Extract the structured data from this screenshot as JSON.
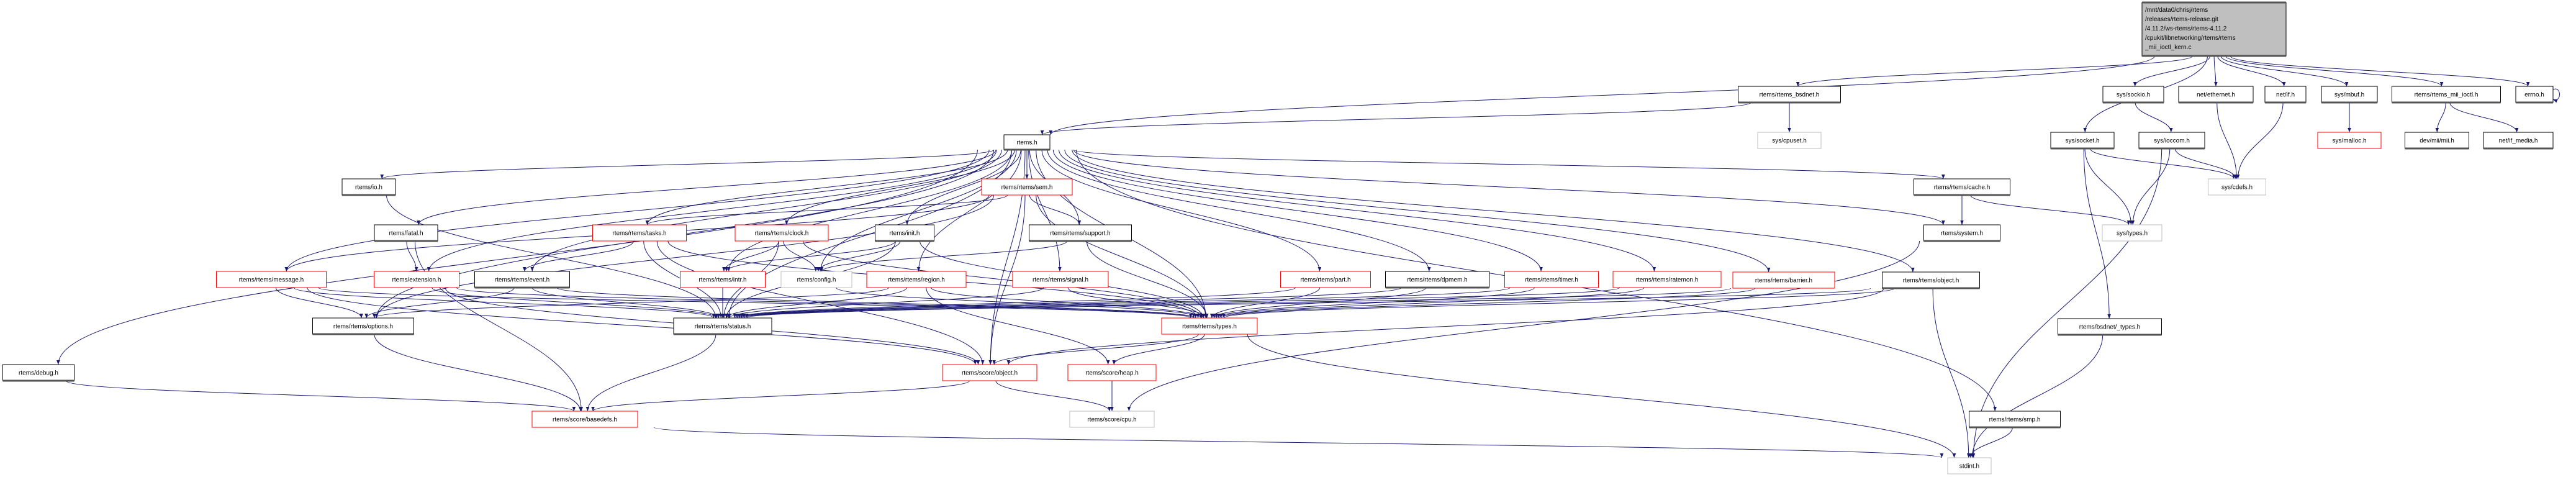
{
  "colors": {
    "edge": "#191970",
    "documented_border": "#000000",
    "documented_shadow": "#555555",
    "truncated_border": "#ff0000",
    "external_border": "#bfbfbf",
    "root_fill": "#bfbfbf"
  },
  "nodes": [
    {
      "id": "root",
      "style": "root",
      "lines": [
        "/mnt/data0/chrisj/rtems",
        "/releases/rtems-release.git",
        "/4.11.2/ws-rtems/rtems-4.11.2",
        "/cpukit/libnetworking/rtems/rtems",
        "_mii_ioctl_kern.c"
      ]
    },
    {
      "id": "rtems_h",
      "label": "rtems.h",
      "style": "documented"
    },
    {
      "id": "bsdnet",
      "label": "rtems/rtems_bsdnet.h",
      "style": "documented"
    },
    {
      "id": "cpuset",
      "label": "sys/cpuset.h",
      "style": "external"
    },
    {
      "id": "socket",
      "label": "sys/socket.h",
      "style": "documented"
    },
    {
      "id": "sockio",
      "label": "sys/sockio.h",
      "style": "documented"
    },
    {
      "id": "ioccom",
      "label": "sys/ioccom.h",
      "style": "documented"
    },
    {
      "id": "ethernet",
      "label": "net/ethernet.h",
      "style": "documented"
    },
    {
      "id": "netif",
      "label": "net/if.h",
      "style": "documented"
    },
    {
      "id": "mbuf",
      "label": "sys/mbuf.h",
      "style": "documented"
    },
    {
      "id": "malloc",
      "label": "sys/malloc.h",
      "style": "truncated"
    },
    {
      "id": "miiioctl",
      "label": "rtems/rtems_mii_ioctl.h",
      "style": "documented"
    },
    {
      "id": "mii",
      "label": "dev/mii/mii.h",
      "style": "documented"
    },
    {
      "id": "ifmedia",
      "label": "net/if_media.h",
      "style": "documented"
    },
    {
      "id": "errno",
      "label": "errno.h",
      "style": "documented"
    },
    {
      "id": "cdefs",
      "label": "sys/cdefs.h",
      "style": "external"
    },
    {
      "id": "systypes",
      "label": "sys/types.h",
      "style": "external"
    },
    {
      "id": "cache",
      "label": "rtems/rtems/cache.h",
      "style": "documented"
    },
    {
      "id": "system",
      "label": "rtems/system.h",
      "style": "documented"
    },
    {
      "id": "barrier",
      "label": "rtems/rtems/barrier.h",
      "style": "truncated"
    },
    {
      "id": "object",
      "label": "rtems/rtems/object.h",
      "style": "documented"
    },
    {
      "id": "bsdtypes",
      "label": "rtems/bsdnet/_types.h",
      "style": "documented"
    },
    {
      "id": "smp",
      "label": "rtems/rtems/smp.h",
      "style": "documented"
    },
    {
      "id": "stdint",
      "label": "stdint.h",
      "style": "external"
    },
    {
      "id": "io",
      "label": "rtems/io.h",
      "style": "documented"
    },
    {
      "id": "fatal",
      "label": "rtems/fatal.h",
      "style": "documented"
    },
    {
      "id": "tasks",
      "label": "rtems/rtems/tasks.h",
      "style": "truncated"
    },
    {
      "id": "clock",
      "label": "rtems/rtems/clock.h",
      "style": "truncated"
    },
    {
      "id": "init",
      "label": "rtems/init.h",
      "style": "documented"
    },
    {
      "id": "sem",
      "label": "rtems/rtems/sem.h",
      "style": "truncated"
    },
    {
      "id": "support",
      "label": "rtems/rtems/support.h",
      "style": "documented"
    },
    {
      "id": "message",
      "label": "rtems/rtems/message.h",
      "style": "truncated"
    },
    {
      "id": "extension",
      "label": "rtems/extension.h",
      "style": "truncated"
    },
    {
      "id": "event",
      "label": "rtems/rtems/event.h",
      "style": "documented"
    },
    {
      "id": "intr",
      "label": "rtems/rtems/intr.h",
      "style": "truncated"
    },
    {
      "id": "config",
      "label": "rtems/config.h",
      "style": "external"
    },
    {
      "id": "region",
      "label": "rtems/rtems/region.h",
      "style": "truncated"
    },
    {
      "id": "signal",
      "label": "rtems/rtems/signal.h",
      "style": "truncated"
    },
    {
      "id": "part",
      "label": "rtems/rtems/part.h",
      "style": "truncated"
    },
    {
      "id": "dpmem",
      "label": "rtems/rtems/dpmem.h",
      "style": "documented"
    },
    {
      "id": "timer",
      "label": "rtems/rtems/timer.h",
      "style": "truncated"
    },
    {
      "id": "ratemon",
      "label": "rtems/rtems/ratemon.h",
      "style": "truncated"
    },
    {
      "id": "options",
      "label": "rtems/rtems/options.h",
      "style": "documented"
    },
    {
      "id": "status",
      "label": "rtems/rtems/status.h",
      "style": "documented"
    },
    {
      "id": "types",
      "label": "rtems/rtems/types.h",
      "style": "truncated"
    },
    {
      "id": "debug",
      "label": "rtems/debug.h",
      "style": "documented"
    },
    {
      "id": "sobject",
      "label": "rtems/score/object.h",
      "style": "truncated"
    },
    {
      "id": "heap",
      "label": "rtems/score/heap.h",
      "style": "truncated"
    },
    {
      "id": "basedefs",
      "label": "rtems/score/basedefs.h",
      "style": "truncated"
    },
    {
      "id": "cpu",
      "label": "rtems/score/cpu.h",
      "style": "external"
    }
  ],
  "edges": [
    [
      "root",
      "rtems_h"
    ],
    [
      "root",
      "bsdnet"
    ],
    [
      "root",
      "socket"
    ],
    [
      "root",
      "sockio"
    ],
    [
      "root",
      "ethernet"
    ],
    [
      "root",
      "netif"
    ],
    [
      "root",
      "mbuf"
    ],
    [
      "root",
      "miiioctl"
    ],
    [
      "root",
      "errno"
    ],
    [
      "errno",
      "errno"
    ],
    [
      "bsdnet",
      "rtems_h"
    ],
    [
      "bsdnet",
      "cpuset"
    ],
    [
      "sockio",
      "ioccom"
    ],
    [
      "socket",
      "cdefs"
    ],
    [
      "socket",
      "systypes"
    ],
    [
      "socket",
      "bsdtypes"
    ],
    [
      "ioccom",
      "cdefs"
    ],
    [
      "ioccom",
      "systypes"
    ],
    [
      "ioccom",
      "stdint"
    ],
    [
      "ethernet",
      "cdefs"
    ],
    [
      "netif",
      "cdefs"
    ],
    [
      "mbuf",
      "malloc"
    ],
    [
      "miiioctl",
      "mii"
    ],
    [
      "miiioctl",
      "ifmedia"
    ],
    [
      "cache",
      "system"
    ],
    [
      "cache",
      "systypes"
    ],
    [
      "system",
      "cpu"
    ],
    [
      "object",
      "types"
    ],
    [
      "object",
      "status"
    ],
    [
      "object",
      "sobject"
    ],
    [
      "object",
      "stdint"
    ],
    [
      "bsdtypes",
      "stdint"
    ],
    [
      "smp",
      "stdint"
    ],
    [
      "types",
      "sobject"
    ],
    [
      "types",
      "heap"
    ],
    [
      "types",
      "stdint"
    ],
    [
      "sobject",
      "basedefs"
    ],
    [
      "sobject",
      "cpu"
    ],
    [
      "heap",
      "cpu"
    ],
    [
      "basedefs",
      "stdint"
    ],
    [
      "debug",
      "basedefs"
    ],
    [
      "options",
      "basedefs"
    ],
    [
      "status",
      "basedefs"
    ],
    [
      "rtems_h",
      "debug"
    ],
    [
      "rtems_h",
      "options"
    ],
    [
      "rtems_h",
      "status"
    ],
    [
      "rtems_h",
      "io"
    ],
    [
      "rtems_h",
      "fatal"
    ],
    [
      "rtems_h",
      "message"
    ],
    [
      "rtems_h",
      "extension"
    ],
    [
      "rtems_h",
      "tasks"
    ],
    [
      "rtems_h",
      "event"
    ],
    [
      "rtems_h",
      "clock"
    ],
    [
      "rtems_h",
      "intr"
    ],
    [
      "rtems_h",
      "config"
    ],
    [
      "rtems_h",
      "init"
    ],
    [
      "rtems_h",
      "sem"
    ],
    [
      "rtems_h",
      "region"
    ],
    [
      "rtems_h",
      "support"
    ],
    [
      "rtems_h",
      "signal"
    ],
    [
      "rtems_h",
      "part"
    ],
    [
      "rtems_h",
      "dpmem"
    ],
    [
      "rtems_h",
      "timer"
    ],
    [
      "rtems_h",
      "ratemon"
    ],
    [
      "rtems_h",
      "barrier"
    ],
    [
      "rtems_h",
      "object"
    ],
    [
      "rtems_h",
      "cache"
    ],
    [
      "rtems_h",
      "system"
    ],
    [
      "rtems_h",
      "smp"
    ],
    [
      "rtems_h",
      "types"
    ],
    [
      "rtems_h",
      "sobject"
    ],
    [
      "io",
      "status"
    ],
    [
      "fatal",
      "extension"
    ],
    [
      "fatal",
      "basedefs"
    ],
    [
      "tasks",
      "event"
    ],
    [
      "tasks",
      "status"
    ],
    [
      "tasks",
      "types"
    ],
    [
      "tasks",
      "sobject"
    ],
    [
      "clock",
      "config"
    ],
    [
      "clock",
      "types"
    ],
    [
      "clock",
      "status"
    ],
    [
      "clock",
      "intr"
    ],
    [
      "init",
      "config"
    ],
    [
      "init",
      "types"
    ],
    [
      "init",
      "status"
    ],
    [
      "init",
      "intr"
    ],
    [
      "sem",
      "tasks"
    ],
    [
      "sem",
      "message"
    ],
    [
      "sem",
      "support"
    ],
    [
      "sem",
      "types"
    ],
    [
      "sem",
      "sobject"
    ],
    [
      "sem",
      "options"
    ],
    [
      "support",
      "types"
    ],
    [
      "support",
      "config"
    ],
    [
      "message",
      "options"
    ],
    [
      "message",
      "status"
    ],
    [
      "message",
      "types"
    ],
    [
      "message",
      "sobject"
    ],
    [
      "extension",
      "status"
    ],
    [
      "extension",
      "types"
    ],
    [
      "extension",
      "sobject"
    ],
    [
      "event",
      "options"
    ],
    [
      "event",
      "status"
    ],
    [
      "event",
      "types"
    ],
    [
      "intr",
      "status"
    ],
    [
      "config",
      "types"
    ],
    [
      "region",
      "status"
    ],
    [
      "region",
      "types"
    ],
    [
      "region",
      "heap"
    ],
    [
      "region",
      "options"
    ],
    [
      "signal",
      "status"
    ],
    [
      "signal",
      "types"
    ],
    [
      "part",
      "status"
    ],
    [
      "part",
      "types"
    ],
    [
      "dpmem",
      "status"
    ],
    [
      "dpmem",
      "types"
    ],
    [
      "timer",
      "status"
    ],
    [
      "timer",
      "types"
    ],
    [
      "ratemon",
      "status"
    ],
    [
      "ratemon",
      "types"
    ],
    [
      "barrier",
      "status"
    ],
    [
      "barrier",
      "types"
    ]
  ]
}
